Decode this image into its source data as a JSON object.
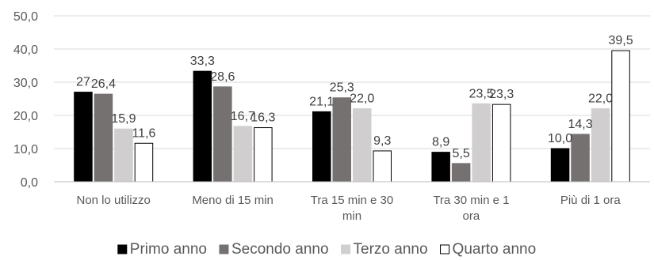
{
  "chart_data": {
    "type": "bar",
    "title": "",
    "xlabel": "",
    "ylabel": "",
    "ylim": [
      0,
      50
    ],
    "yticks": [
      "0,0",
      "10,0",
      "20,0",
      "30,0",
      "40,0",
      "50,0"
    ],
    "grid": true,
    "legend_position": "bottom",
    "categories": [
      [
        "Non lo utilizzo"
      ],
      [
        "Meno di 15 min"
      ],
      [
        "Tra 15 min e 30",
        "min"
      ],
      [
        "Tra 30 min e 1",
        "ora"
      ],
      [
        "Più di 1 ora"
      ]
    ],
    "series": [
      {
        "name": "Primo anno",
        "color": "#000000",
        "stroke": "#000000",
        "values": [
          27,
          33.3,
          21.1,
          8.9,
          10.0
        ],
        "labels": [
          "27",
          "33,3",
          "21,1",
          "8,9",
          "10,0"
        ]
      },
      {
        "name": "Secondo anno",
        "color": "#767171",
        "stroke": "#767171",
        "values": [
          26.4,
          28.6,
          25.3,
          5.5,
          14.3
        ],
        "labels": [
          "26,4",
          "28,6",
          "25,3",
          "5,5",
          "14,3"
        ]
      },
      {
        "name": "Terzo anno",
        "color": "#d0cece",
        "stroke": "#d0cece",
        "values": [
          15.9,
          16.7,
          22.0,
          23.5,
          22.0
        ],
        "labels": [
          "15,9",
          "16,7",
          "22,0",
          "23,5",
          "22,0"
        ]
      },
      {
        "name": "Quarto anno",
        "color": "#ffffff",
        "stroke": "#000000",
        "values": [
          11.6,
          16.3,
          9.3,
          23.3,
          39.5
        ],
        "labels": [
          "11,6",
          "16,3",
          "9,3",
          "23,3",
          "39,5"
        ]
      }
    ]
  }
}
